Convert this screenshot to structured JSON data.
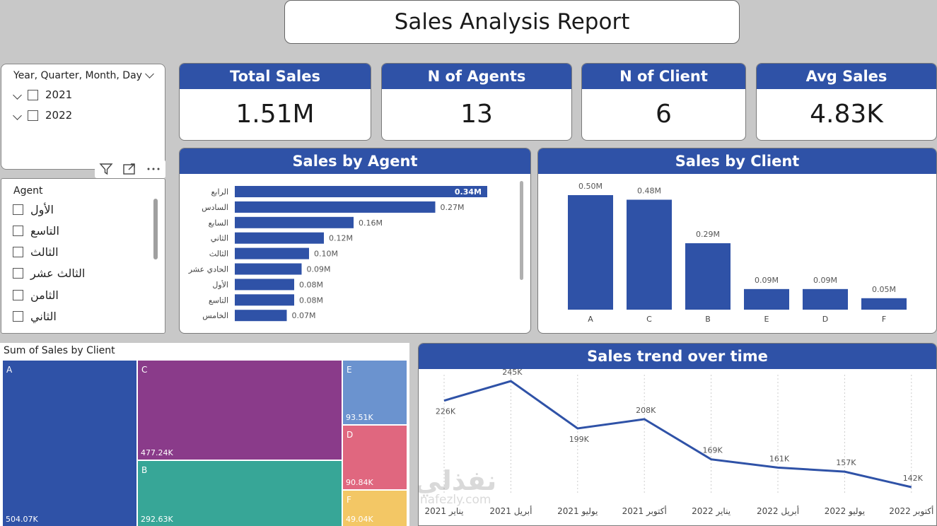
{
  "report_title": "Sales Analysis Report",
  "kpis": [
    {
      "title": "Total Sales",
      "value": "1.51M"
    },
    {
      "title": "N of Agents",
      "value": "13"
    },
    {
      "title": "N of Client",
      "value": "6"
    },
    {
      "title": "Avg Sales",
      "value": "4.83K"
    }
  ],
  "date_slicer": {
    "title": "Year, Quarter, Month, Day",
    "items": [
      "2021",
      "2022"
    ]
  },
  "agent_slicer": {
    "title": "Agent",
    "items": [
      "الأول",
      "التاسع",
      "الثالث",
      "الثالث عشر",
      "الثامن",
      "الثاني"
    ]
  },
  "agent_chart": {
    "title": "Sales by Agent",
    "chart_data": {
      "type": "bar",
      "orientation": "horizontal",
      "categories": [
        "الرابع",
        "السادس",
        "السابع",
        "الثاني",
        "الثالث",
        "الحادي عشر",
        "الأول",
        "التاسع",
        "الخامس"
      ],
      "values": [
        0.34,
        0.27,
        0.16,
        0.12,
        0.1,
        0.09,
        0.08,
        0.08,
        0.07
      ],
      "labels": [
        "0.34M",
        "0.27M",
        "0.16M",
        "0.12M",
        "0.10M",
        "0.09M",
        "0.08M",
        "0.08M",
        "0.07M"
      ],
      "color": "#2f52a7"
    }
  },
  "client_chart": {
    "title": "Sales by Client",
    "chart_data": {
      "type": "bar",
      "categories": [
        "A",
        "C",
        "B",
        "E",
        "D",
        "F"
      ],
      "values": [
        0.5,
        0.48,
        0.29,
        0.09,
        0.09,
        0.05
      ],
      "labels": [
        "0.50M",
        "0.48M",
        "0.29M",
        "0.09M",
        "0.09M",
        "0.05M"
      ],
      "color": "#2f52a7"
    }
  },
  "treemap": {
    "title": "Sum of Sales by Client",
    "chart_data": {
      "type": "treemap",
      "items": [
        {
          "name": "A",
          "value": "504.07K",
          "color": "#2f52a7"
        },
        {
          "name": "C",
          "value": "477.24K",
          "color": "#8a3b8a"
        },
        {
          "name": "B",
          "value": "292.63K",
          "color": "#37a697"
        },
        {
          "name": "E",
          "value": "93.51K",
          "color": "#6b93cf"
        },
        {
          "name": "D",
          "value": "90.84K",
          "color": "#e0677f"
        },
        {
          "name": "F",
          "value": "49.04K",
          "color": "#f3c765"
        }
      ]
    }
  },
  "trend_chart": {
    "title": "Sales trend over time",
    "chart_data": {
      "type": "line",
      "categories": [
        "يناير 2021",
        "أبريل 2021",
        "يوليو 2021",
        "أكتوبر 2021",
        "يناير 2022",
        "أبريل 2022",
        "يوليو 2022",
        "أكتوبر 2022"
      ],
      "values": [
        226,
        245,
        199,
        208,
        169,
        161,
        157,
        142
      ],
      "labels": [
        "226K",
        "245K",
        "199K",
        "208K",
        "169K",
        "161K",
        "157K",
        "142K"
      ],
      "color": "#2f52a7"
    }
  },
  "watermark": {
    "text": "نفذلي",
    "sub": "nafezly.com"
  }
}
